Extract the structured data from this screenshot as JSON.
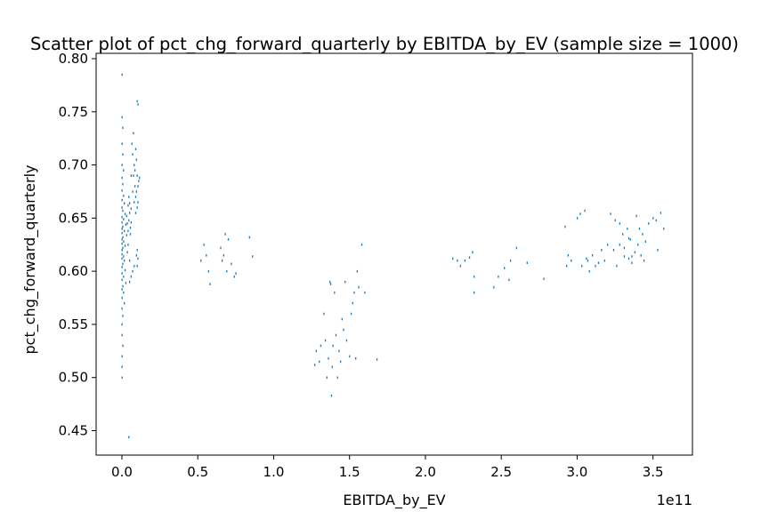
{
  "chart_data": {
    "type": "scatter",
    "title": "Scatter plot of pct_chg_forward_quarterly by EBITDA_by_EV (sample size = 1000)",
    "xlabel": "EBITDA_by_EV",
    "ylabel": "pct_chg_forward_quarterly",
    "x_offset_label": "1e11",
    "xlim": [
      -0.17,
      3.76
    ],
    "ylim": [
      0.427,
      0.805
    ],
    "xticks": [
      0.0,
      0.5,
      1.0,
      1.5,
      2.0,
      2.5,
      3.0,
      3.5
    ],
    "xtick_labels": [
      "0.0",
      "0.5",
      "1.0",
      "1.5",
      "2.0",
      "2.5",
      "3.0",
      "3.5"
    ],
    "yticks": [
      0.45,
      0.5,
      0.55,
      0.6,
      0.65,
      0.7,
      0.75,
      0.8
    ],
    "ytick_labels": [
      "0.45",
      "0.50",
      "0.55",
      "0.60",
      "0.65",
      "0.70",
      "0.75",
      "0.80"
    ],
    "grid": false,
    "marker_color": "#1f77b4",
    "series": [
      {
        "points": [
          [
            0.0,
            0.785
          ],
          [
            0.0,
            0.745
          ],
          [
            0.005,
            0.735
          ],
          [
            0.0,
            0.72
          ],
          [
            0.005,
            0.71
          ],
          [
            0.0,
            0.7
          ],
          [
            0.01,
            0.695
          ],
          [
            0.0,
            0.688
          ],
          [
            0.005,
            0.682
          ],
          [
            0.0,
            0.676
          ],
          [
            0.01,
            0.671
          ],
          [
            0.0,
            0.667
          ],
          [
            0.015,
            0.664
          ],
          [
            0.0,
            0.66
          ],
          [
            0.005,
            0.657
          ],
          [
            0.02,
            0.654
          ],
          [
            0.0,
            0.651
          ],
          [
            0.01,
            0.649
          ],
          [
            0.0,
            0.646
          ],
          [
            0.025,
            0.644
          ],
          [
            0.005,
            0.642
          ],
          [
            0.0,
            0.64
          ],
          [
            0.015,
            0.638
          ],
          [
            0.0,
            0.636
          ],
          [
            0.03,
            0.634
          ],
          [
            0.005,
            0.632
          ],
          [
            0.0,
            0.63
          ],
          [
            0.01,
            0.628
          ],
          [
            0.0,
            0.626
          ],
          [
            0.02,
            0.624
          ],
          [
            0.005,
            0.622
          ],
          [
            0.0,
            0.62
          ],
          [
            0.035,
            0.618
          ],
          [
            0.0,
            0.616
          ],
          [
            0.01,
            0.614
          ],
          [
            0.0,
            0.612
          ],
          [
            0.015,
            0.61
          ],
          [
            0.005,
            0.607
          ],
          [
            0.0,
            0.604
          ],
          [
            0.02,
            0.601
          ],
          [
            0.0,
            0.598
          ],
          [
            0.01,
            0.595
          ],
          [
            0.0,
            0.592
          ],
          [
            0.025,
            0.589
          ],
          [
            0.005,
            0.586
          ],
          [
            0.0,
            0.583
          ],
          [
            0.01,
            0.58
          ],
          [
            0.0,
            0.575
          ],
          [
            0.015,
            0.57
          ],
          [
            0.0,
            0.565
          ],
          [
            0.005,
            0.558
          ],
          [
            0.0,
            0.55
          ],
          [
            0.0,
            0.54
          ],
          [
            0.005,
            0.53
          ],
          [
            0.0,
            0.52
          ],
          [
            0.0,
            0.51
          ],
          [
            0.0,
            0.5
          ],
          [
            0.045,
            0.444
          ],
          [
            0.04,
            0.662
          ],
          [
            0.045,
            0.648
          ],
          [
            0.05,
            0.655
          ],
          [
            0.055,
            0.641
          ],
          [
            0.06,
            0.659
          ],
          [
            0.035,
            0.645
          ],
          [
            0.04,
            0.638
          ],
          [
            0.05,
            0.664
          ],
          [
            0.03,
            0.652
          ],
          [
            0.06,
            0.646
          ],
          [
            0.045,
            0.67
          ],
          [
            0.055,
            0.635
          ],
          [
            0.04,
            0.625
          ],
          [
            0.05,
            0.61
          ],
          [
            0.07,
            0.71
          ],
          [
            0.075,
            0.69
          ],
          [
            0.08,
            0.7
          ],
          [
            0.085,
            0.68
          ],
          [
            0.09,
            0.715
          ],
          [
            0.095,
            0.705
          ],
          [
            0.1,
            0.76
          ],
          [
            0.105,
            0.757
          ],
          [
            0.07,
            0.675
          ],
          [
            0.08,
            0.665
          ],
          [
            0.09,
            0.67
          ],
          [
            0.1,
            0.69
          ],
          [
            0.11,
            0.685
          ],
          [
            0.06,
            0.69
          ],
          [
            0.065,
            0.72
          ],
          [
            0.075,
            0.73
          ],
          [
            0.085,
            0.695
          ],
          [
            0.095,
            0.675
          ],
          [
            0.105,
            0.68
          ],
          [
            0.115,
            0.688
          ],
          [
            0.1,
            0.66
          ],
          [
            0.09,
            0.655
          ],
          [
            0.105,
            0.665
          ],
          [
            0.1,
            0.62
          ],
          [
            0.105,
            0.612
          ],
          [
            0.1,
            0.605
          ],
          [
            0.095,
            0.615
          ],
          [
            0.05,
            0.59
          ],
          [
            0.06,
            0.595
          ],
          [
            0.07,
            0.6
          ],
          [
            0.08,
            0.605
          ],
          [
            0.52,
            0.61
          ],
          [
            0.54,
            0.625
          ],
          [
            0.57,
            0.6
          ],
          [
            0.58,
            0.588
          ],
          [
            0.65,
            0.622
          ],
          [
            0.67,
            0.615
          ],
          [
            0.68,
            0.635
          ],
          [
            0.69,
            0.6
          ],
          [
            0.7,
            0.63
          ],
          [
            0.72,
            0.607
          ],
          [
            0.74,
            0.595
          ],
          [
            0.75,
            0.598
          ],
          [
            0.84,
            0.632
          ],
          [
            0.86,
            0.614
          ],
          [
            0.66,
            0.61
          ],
          [
            0.555,
            0.615
          ],
          [
            1.27,
            0.512
          ],
          [
            1.28,
            0.525
          ],
          [
            1.3,
            0.515
          ],
          [
            1.31,
            0.53
          ],
          [
            1.33,
            0.56
          ],
          [
            1.34,
            0.535
          ],
          [
            1.35,
            0.5
          ],
          [
            1.36,
            0.518
          ],
          [
            1.37,
            0.59
          ],
          [
            1.38,
            0.483
          ],
          [
            1.385,
            0.51
          ],
          [
            1.39,
            0.53
          ],
          [
            1.4,
            0.58
          ],
          [
            1.41,
            0.54
          ],
          [
            1.42,
            0.5
          ],
          [
            1.43,
            0.525
          ],
          [
            1.44,
            0.515
          ],
          [
            1.45,
            0.555
          ],
          [
            1.46,
            0.545
          ],
          [
            1.47,
            0.59
          ],
          [
            1.48,
            0.535
          ],
          [
            1.5,
            0.52
          ],
          [
            1.51,
            0.56
          ],
          [
            1.52,
            0.57
          ],
          [
            1.53,
            0.58
          ],
          [
            1.54,
            0.518
          ],
          [
            1.55,
            0.6
          ],
          [
            1.56,
            0.585
          ],
          [
            1.58,
            0.625
          ],
          [
            1.6,
            0.58
          ],
          [
            1.68,
            0.517
          ],
          [
            1.375,
            0.588
          ],
          [
            2.18,
            0.612
          ],
          [
            2.21,
            0.61
          ],
          [
            2.23,
            0.605
          ],
          [
            2.26,
            0.61
          ],
          [
            2.29,
            0.613
          ],
          [
            2.31,
            0.618
          ],
          [
            2.32,
            0.58
          ],
          [
            2.32,
            0.595
          ],
          [
            2.45,
            0.585
          ],
          [
            2.48,
            0.595
          ],
          [
            2.52,
            0.603
          ],
          [
            2.55,
            0.592
          ],
          [
            2.56,
            0.61
          ],
          [
            2.6,
            0.622
          ],
          [
            2.67,
            0.608
          ],
          [
            2.78,
            0.593
          ],
          [
            2.92,
            0.642
          ],
          [
            2.93,
            0.605
          ],
          [
            2.94,
            0.615
          ],
          [
            2.96,
            0.61
          ],
          [
            3.0,
            0.65
          ],
          [
            3.02,
            0.654
          ],
          [
            3.03,
            0.605
          ],
          [
            3.05,
            0.657
          ],
          [
            3.06,
            0.612
          ],
          [
            3.07,
            0.61
          ],
          [
            3.08,
            0.6
          ],
          [
            3.1,
            0.615
          ],
          [
            3.12,
            0.605
          ],
          [
            3.14,
            0.608
          ],
          [
            3.16,
            0.62
          ],
          [
            3.18,
            0.61
          ],
          [
            3.2,
            0.625
          ],
          [
            3.22,
            0.654
          ],
          [
            3.24,
            0.62
          ],
          [
            3.25,
            0.648
          ],
          [
            3.26,
            0.605
          ],
          [
            3.28,
            0.645
          ],
          [
            3.3,
            0.635
          ],
          [
            3.31,
            0.614
          ],
          [
            3.33,
            0.64
          ],
          [
            3.34,
            0.612
          ],
          [
            3.35,
            0.63
          ],
          [
            3.36,
            0.608
          ],
          [
            3.38,
            0.618
          ],
          [
            3.39,
            0.652
          ],
          [
            3.4,
            0.625
          ],
          [
            3.41,
            0.64
          ],
          [
            3.42,
            0.615
          ],
          [
            3.43,
            0.635
          ],
          [
            3.45,
            0.628
          ],
          [
            3.47,
            0.645
          ],
          [
            3.5,
            0.65
          ],
          [
            3.52,
            0.648
          ],
          [
            3.53,
            0.62
          ],
          [
            3.55,
            0.655
          ],
          [
            3.57,
            0.64
          ],
          [
            3.28,
            0.625
          ],
          [
            3.31,
            0.622
          ],
          [
            3.34,
            0.631
          ],
          [
            3.36,
            0.614
          ],
          [
            3.44,
            0.61
          ]
        ]
      }
    ]
  }
}
